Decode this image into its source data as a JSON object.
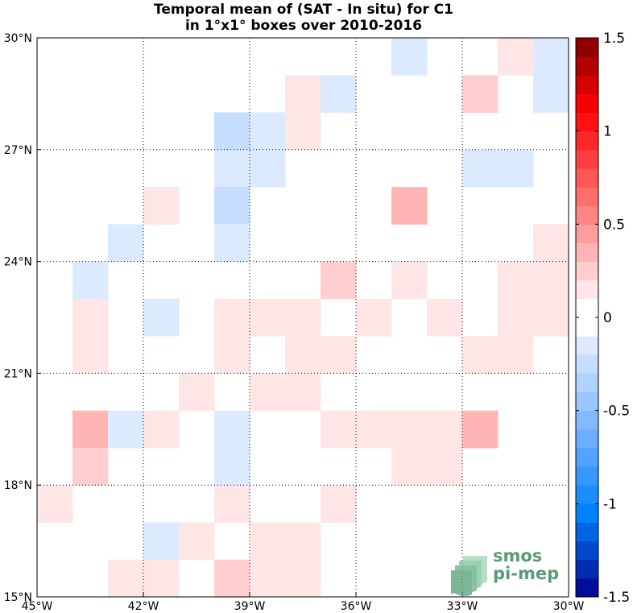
{
  "chart_data": {
    "type": "heatmap",
    "title": [
      "Temporal mean of (SAT - In situ) for C1",
      "in 1°x1° boxes over 2010-2016"
    ],
    "x_ticks": [
      {
        "value": -45,
        "label": "45°W"
      },
      {
        "value": -42,
        "label": "42°W"
      },
      {
        "value": -39,
        "label": "39°W"
      },
      {
        "value": -36,
        "label": "36°W"
      },
      {
        "value": -33,
        "label": "33°W"
      },
      {
        "value": -30,
        "label": "30°W"
      }
    ],
    "y_ticks": [
      {
        "value": 15,
        "label": "15°N"
      },
      {
        "value": 18,
        "label": "18°N"
      },
      {
        "value": 21,
        "label": "21°N"
      },
      {
        "value": 24,
        "label": "24°N"
      },
      {
        "value": 27,
        "label": "27°N"
      },
      {
        "value": 30,
        "label": "30°N"
      }
    ],
    "lon_range": [
      -45,
      -30
    ],
    "lat_range": [
      15,
      30
    ],
    "grid": "dotted",
    "colorbar": {
      "range": [
        -1.5,
        1.5
      ],
      "levels": 30,
      "ticks": [
        {
          "value": 1.5,
          "label": "1.5"
        },
        {
          "value": 1,
          "label": "1"
        },
        {
          "value": 0.5,
          "label": "0.5"
        },
        {
          "value": 0,
          "label": "0"
        },
        {
          "value": -0.5,
          "label": "-0.5"
        },
        {
          "value": -1,
          "label": "-1"
        },
        {
          "value": -1.5,
          "label": "-1.5"
        }
      ]
    },
    "cells": [
      {
        "lon": -35,
        "lat": 29,
        "value": -0.15
      },
      {
        "lon": -32,
        "lat": 29,
        "value": 0.15
      },
      {
        "lon": -31,
        "lat": 29,
        "value": -0.15
      },
      {
        "lon": -38,
        "lat": 28,
        "value": 0.15
      },
      {
        "lon": -37,
        "lat": 28,
        "value": -0.15
      },
      {
        "lon": -33,
        "lat": 28,
        "value": 0.25
      },
      {
        "lon": -31,
        "lat": 28,
        "value": -0.15
      },
      {
        "lon": -40,
        "lat": 27,
        "value": -0.25
      },
      {
        "lon": -39,
        "lat": 27,
        "value": -0.15
      },
      {
        "lon": -38,
        "lat": 27,
        "value": 0.15
      },
      {
        "lon": -40,
        "lat": 26,
        "value": -0.15
      },
      {
        "lon": -39,
        "lat": 26,
        "value": -0.15
      },
      {
        "lon": -33,
        "lat": 26,
        "value": -0.15
      },
      {
        "lon": -32,
        "lat": 26,
        "value": -0.15
      },
      {
        "lon": -42,
        "lat": 25,
        "value": 0.15
      },
      {
        "lon": -40,
        "lat": 25,
        "value": -0.25
      },
      {
        "lon": -35,
        "lat": 25,
        "value": 0.35
      },
      {
        "lon": -43,
        "lat": 24,
        "value": -0.15
      },
      {
        "lon": -40,
        "lat": 24,
        "value": -0.15
      },
      {
        "lon": -31,
        "lat": 24,
        "value": 0.15
      },
      {
        "lon": -44,
        "lat": 23,
        "value": -0.15
      },
      {
        "lon": -37,
        "lat": 23,
        "value": 0.25
      },
      {
        "lon": -35,
        "lat": 23,
        "value": 0.15
      },
      {
        "lon": -32,
        "lat": 23,
        "value": 0.15
      },
      {
        "lon": -31,
        "lat": 23,
        "value": 0.15
      },
      {
        "lon": -44,
        "lat": 22,
        "value": 0.15
      },
      {
        "lon": -42,
        "lat": 22,
        "value": -0.15
      },
      {
        "lon": -40,
        "lat": 22,
        "value": 0.15
      },
      {
        "lon": -39,
        "lat": 22,
        "value": 0.15
      },
      {
        "lon": -38,
        "lat": 22,
        "value": 0.15
      },
      {
        "lon": -36,
        "lat": 22,
        "value": 0.15
      },
      {
        "lon": -34,
        "lat": 22,
        "value": 0.15
      },
      {
        "lon": -32,
        "lat": 22,
        "value": 0.15
      },
      {
        "lon": -31,
        "lat": 22,
        "value": 0.15
      },
      {
        "lon": -44,
        "lat": 21,
        "value": 0.15
      },
      {
        "lon": -40,
        "lat": 21,
        "value": 0.15
      },
      {
        "lon": -38,
        "lat": 21,
        "value": 0.15
      },
      {
        "lon": -37,
        "lat": 21,
        "value": 0.15
      },
      {
        "lon": -33,
        "lat": 21,
        "value": 0.15
      },
      {
        "lon": -32,
        "lat": 21,
        "value": 0.15
      },
      {
        "lon": -41,
        "lat": 20,
        "value": 0.15
      },
      {
        "lon": -39,
        "lat": 20,
        "value": 0.15
      },
      {
        "lon": -38,
        "lat": 20,
        "value": 0.15
      },
      {
        "lon": -44,
        "lat": 19,
        "value": 0.35
      },
      {
        "lon": -43,
        "lat": 19,
        "value": -0.15
      },
      {
        "lon": -42,
        "lat": 19,
        "value": 0.15
      },
      {
        "lon": -40,
        "lat": 19,
        "value": -0.15
      },
      {
        "lon": -37,
        "lat": 19,
        "value": 0.15
      },
      {
        "lon": -36,
        "lat": 19,
        "value": 0.15
      },
      {
        "lon": -35,
        "lat": 19,
        "value": 0.15
      },
      {
        "lon": -34,
        "lat": 19,
        "value": 0.15
      },
      {
        "lon": -33,
        "lat": 19,
        "value": 0.35
      },
      {
        "lon": -44,
        "lat": 18,
        "value": 0.25
      },
      {
        "lon": -40,
        "lat": 18,
        "value": -0.15
      },
      {
        "lon": -35,
        "lat": 18,
        "value": 0.15
      },
      {
        "lon": -34,
        "lat": 18,
        "value": 0.15
      },
      {
        "lon": -45,
        "lat": 17,
        "value": 0.15
      },
      {
        "lon": -40,
        "lat": 17,
        "value": 0.15
      },
      {
        "lon": -37,
        "lat": 17,
        "value": 0.15
      },
      {
        "lon": -42,
        "lat": 16,
        "value": -0.15
      },
      {
        "lon": -41,
        "lat": 16,
        "value": 0.15
      },
      {
        "lon": -39,
        "lat": 16,
        "value": 0.15
      },
      {
        "lon": -38,
        "lat": 16,
        "value": 0.15
      },
      {
        "lon": -43,
        "lat": 15,
        "value": 0.15
      },
      {
        "lon": -42,
        "lat": 15,
        "value": 0.15
      },
      {
        "lon": -40,
        "lat": 15,
        "value": 0.25
      },
      {
        "lon": -39,
        "lat": 15,
        "value": 0.15
      },
      {
        "lon": -38,
        "lat": 15,
        "value": 0.15
      }
    ]
  },
  "logo": {
    "line1": "smos",
    "line2": "pi-mep"
  }
}
